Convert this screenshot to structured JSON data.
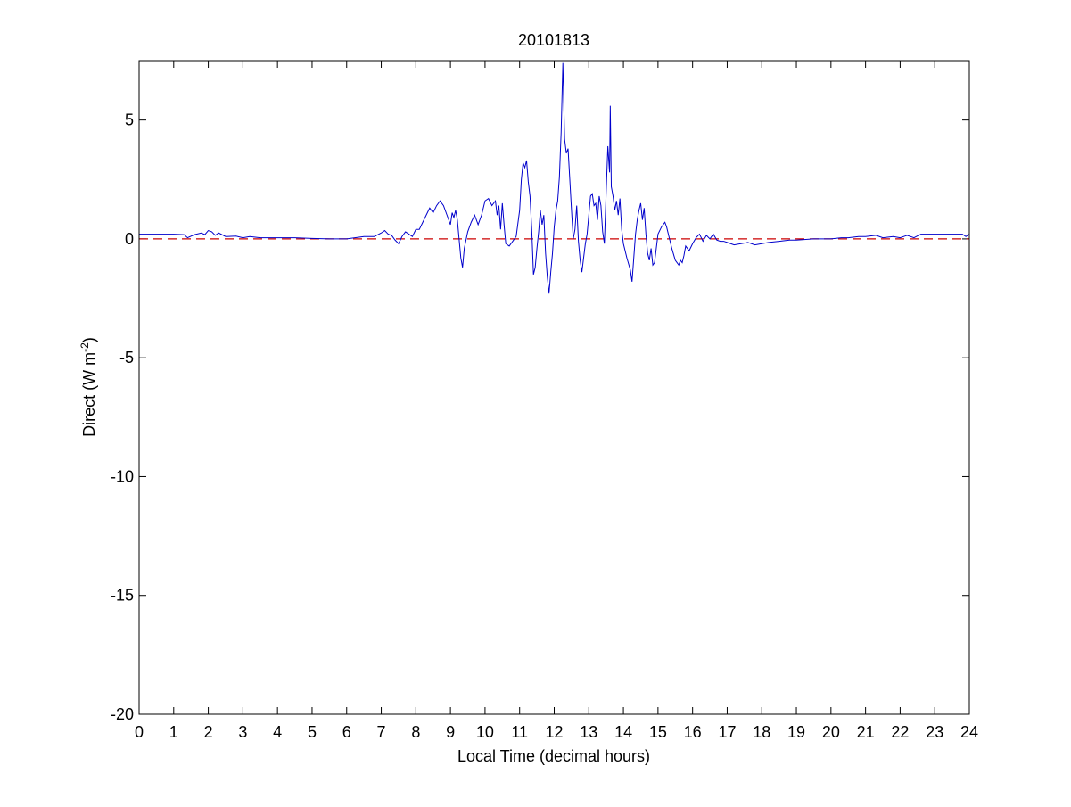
{
  "chart_data": {
    "type": "line",
    "title": "20101813",
    "xlabel": "Local Time (decimal hours)",
    "ylabel": {
      "prefix": "Direct (W m",
      "superscript": "-2",
      "suffix": ")"
    },
    "xlim": [
      0,
      24
    ],
    "ylim": [
      -20,
      7.5
    ],
    "x_ticks": [
      0,
      1,
      2,
      3,
      4,
      5,
      6,
      7,
      8,
      9,
      10,
      11,
      12,
      13,
      14,
      15,
      16,
      17,
      18,
      19,
      20,
      21,
      22,
      23,
      24
    ],
    "y_ticks": [
      -20,
      -15,
      -10,
      -5,
      0,
      5
    ],
    "grid": false,
    "reference_line": {
      "y": 0,
      "color": "#cc0000",
      "style": "dashed"
    },
    "series": [
      {
        "color": "#0000cc",
        "points": [
          [
            0.0,
            0.2
          ],
          [
            0.5,
            0.2
          ],
          [
            1.0,
            0.2
          ],
          [
            1.3,
            0.18
          ],
          [
            1.4,
            0.05
          ],
          [
            1.6,
            0.18
          ],
          [
            1.8,
            0.25
          ],
          [
            1.9,
            0.18
          ],
          [
            2.0,
            0.35
          ],
          [
            2.1,
            0.3
          ],
          [
            2.2,
            0.15
          ],
          [
            2.3,
            0.25
          ],
          [
            2.5,
            0.1
          ],
          [
            2.8,
            0.12
          ],
          [
            3.0,
            0.05
          ],
          [
            3.2,
            0.1
          ],
          [
            3.5,
            0.05
          ],
          [
            4.0,
            0.05
          ],
          [
            4.5,
            0.05
          ],
          [
            5.0,
            0.02
          ],
          [
            5.5,
            0.0
          ],
          [
            6.0,
            0.0
          ],
          [
            6.5,
            0.1
          ],
          [
            6.8,
            0.1
          ],
          [
            7.0,
            0.25
          ],
          [
            7.1,
            0.35
          ],
          [
            7.2,
            0.2
          ],
          [
            7.3,
            0.15
          ],
          [
            7.4,
            -0.05
          ],
          [
            7.5,
            -0.2
          ],
          [
            7.6,
            0.1
          ],
          [
            7.7,
            0.3
          ],
          [
            7.8,
            0.2
          ],
          [
            7.9,
            0.1
          ],
          [
            8.0,
            0.4
          ],
          [
            8.1,
            0.4
          ],
          [
            8.2,
            0.7
          ],
          [
            8.3,
            1.0
          ],
          [
            8.4,
            1.3
          ],
          [
            8.5,
            1.1
          ],
          [
            8.6,
            1.4
          ],
          [
            8.7,
            1.6
          ],
          [
            8.8,
            1.4
          ],
          [
            8.9,
            1.0
          ],
          [
            9.0,
            0.6
          ],
          [
            9.05,
            1.1
          ],
          [
            9.1,
            0.9
          ],
          [
            9.15,
            1.2
          ],
          [
            9.2,
            0.8
          ],
          [
            9.25,
            0.0
          ],
          [
            9.3,
            -0.8
          ],
          [
            9.35,
            -1.2
          ],
          [
            9.4,
            -0.4
          ],
          [
            9.5,
            0.3
          ],
          [
            9.6,
            0.7
          ],
          [
            9.7,
            1.0
          ],
          [
            9.8,
            0.6
          ],
          [
            9.9,
            1.0
          ],
          [
            10.0,
            1.6
          ],
          [
            10.1,
            1.7
          ],
          [
            10.2,
            1.4
          ],
          [
            10.3,
            1.6
          ],
          [
            10.35,
            1.0
          ],
          [
            10.4,
            1.4
          ],
          [
            10.45,
            0.4
          ],
          [
            10.5,
            1.5
          ],
          [
            10.55,
            0.6
          ],
          [
            10.6,
            -0.2
          ],
          [
            10.7,
            -0.3
          ],
          [
            10.8,
            -0.1
          ],
          [
            10.9,
            0.1
          ],
          [
            11.0,
            1.2
          ],
          [
            11.05,
            2.5
          ],
          [
            11.1,
            3.2
          ],
          [
            11.15,
            3.0
          ],
          [
            11.2,
            3.3
          ],
          [
            11.25,
            2.4
          ],
          [
            11.3,
            1.8
          ],
          [
            11.35,
            0.4
          ],
          [
            11.4,
            -1.5
          ],
          [
            11.45,
            -1.2
          ],
          [
            11.5,
            -0.4
          ],
          [
            11.55,
            0.3
          ],
          [
            11.6,
            1.2
          ],
          [
            11.65,
            0.6
          ],
          [
            11.7,
            1.0
          ],
          [
            11.75,
            -0.6
          ],
          [
            11.8,
            -1.6
          ],
          [
            11.85,
            -2.3
          ],
          [
            11.9,
            -1.4
          ],
          [
            11.95,
            -0.6
          ],
          [
            12.0,
            0.5
          ],
          [
            12.05,
            1.2
          ],
          [
            12.1,
            1.6
          ],
          [
            12.15,
            2.6
          ],
          [
            12.2,
            4.5
          ],
          [
            12.25,
            7.4
          ],
          [
            12.3,
            4.2
          ],
          [
            12.35,
            3.6
          ],
          [
            12.4,
            3.8
          ],
          [
            12.45,
            2.5
          ],
          [
            12.5,
            1.2
          ],
          [
            12.55,
            0.0
          ],
          [
            12.6,
            0.4
          ],
          [
            12.65,
            1.4
          ],
          [
            12.7,
            -0.1
          ],
          [
            12.75,
            -0.9
          ],
          [
            12.8,
            -1.4
          ],
          [
            12.85,
            -0.8
          ],
          [
            12.9,
            -0.2
          ],
          [
            12.95,
            0.2
          ],
          [
            13.0,
            1.0
          ],
          [
            13.05,
            1.8
          ],
          [
            13.1,
            1.9
          ],
          [
            13.15,
            1.4
          ],
          [
            13.2,
            1.5
          ],
          [
            13.25,
            0.8
          ],
          [
            13.3,
            1.8
          ],
          [
            13.35,
            1.4
          ],
          [
            13.4,
            0.3
          ],
          [
            13.45,
            -0.2
          ],
          [
            13.5,
            1.9
          ],
          [
            13.55,
            3.9
          ],
          [
            13.6,
            2.8
          ],
          [
            13.62,
            5.6
          ],
          [
            13.65,
            2.2
          ],
          [
            13.7,
            1.8
          ],
          [
            13.75,
            1.2
          ],
          [
            13.8,
            1.6
          ],
          [
            13.85,
            1.0
          ],
          [
            13.9,
            1.7
          ],
          [
            13.95,
            0.4
          ],
          [
            14.0,
            -0.2
          ],
          [
            14.1,
            -0.8
          ],
          [
            14.2,
            -1.3
          ],
          [
            14.25,
            -1.8
          ],
          [
            14.3,
            -0.8
          ],
          [
            14.35,
            0.2
          ],
          [
            14.4,
            0.8
          ],
          [
            14.45,
            1.2
          ],
          [
            14.5,
            1.5
          ],
          [
            14.55,
            0.8
          ],
          [
            14.6,
            1.3
          ],
          [
            14.65,
            0.2
          ],
          [
            14.7,
            -0.6
          ],
          [
            14.75,
            -0.9
          ],
          [
            14.8,
            -0.4
          ],
          [
            14.85,
            -1.1
          ],
          [
            14.9,
            -1.0
          ],
          [
            14.95,
            -0.4
          ],
          [
            15.0,
            0.2
          ],
          [
            15.1,
            0.5
          ],
          [
            15.2,
            0.7
          ],
          [
            15.25,
            0.5
          ],
          [
            15.3,
            0.2
          ],
          [
            15.4,
            -0.4
          ],
          [
            15.5,
            -0.9
          ],
          [
            15.6,
            -1.1
          ],
          [
            15.65,
            -0.9
          ],
          [
            15.7,
            -1.0
          ],
          [
            15.75,
            -0.7
          ],
          [
            15.8,
            -0.3
          ],
          [
            15.9,
            -0.5
          ],
          [
            16.0,
            -0.2
          ],
          [
            16.1,
            0.05
          ],
          [
            16.2,
            0.2
          ],
          [
            16.3,
            -0.1
          ],
          [
            16.4,
            0.15
          ],
          [
            16.5,
            0.0
          ],
          [
            16.6,
            0.2
          ],
          [
            16.7,
            -0.05
          ],
          [
            16.8,
            -0.1
          ],
          [
            16.9,
            -0.1
          ],
          [
            17.0,
            -0.15
          ],
          [
            17.2,
            -0.25
          ],
          [
            17.4,
            -0.2
          ],
          [
            17.6,
            -0.15
          ],
          [
            17.8,
            -0.25
          ],
          [
            18.0,
            -0.2
          ],
          [
            18.2,
            -0.15
          ],
          [
            18.5,
            -0.1
          ],
          [
            18.8,
            -0.05
          ],
          [
            19.0,
            -0.05
          ],
          [
            19.5,
            0.0
          ],
          [
            20.0,
            0.0
          ],
          [
            20.3,
            0.05
          ],
          [
            20.5,
            0.05
          ],
          [
            20.8,
            0.1
          ],
          [
            21.0,
            0.1
          ],
          [
            21.3,
            0.15
          ],
          [
            21.5,
            0.05
          ],
          [
            21.8,
            0.1
          ],
          [
            22.0,
            0.05
          ],
          [
            22.2,
            0.15
          ],
          [
            22.4,
            0.05
          ],
          [
            22.6,
            0.2
          ],
          [
            22.8,
            0.2
          ],
          [
            23.0,
            0.2
          ],
          [
            23.5,
            0.2
          ],
          [
            23.8,
            0.2
          ],
          [
            23.9,
            0.1
          ],
          [
            24.0,
            0.2
          ]
        ]
      }
    ]
  }
}
